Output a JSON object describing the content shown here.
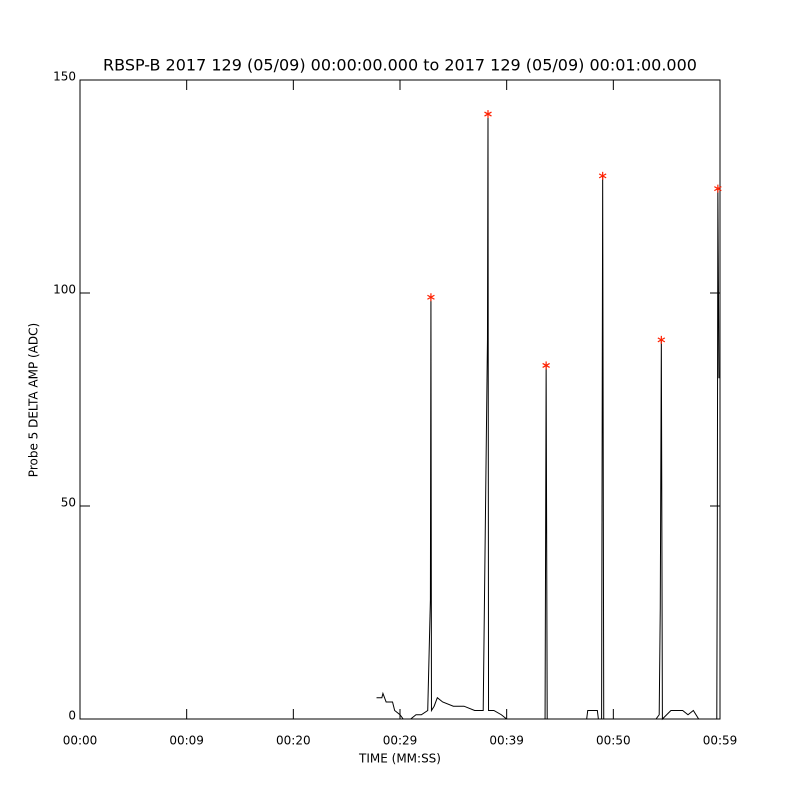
{
  "chart_data": {
    "type": "line",
    "title": "RBSP-B 2017 129 (05/09) 00:00:00.000 to 2017 129 (05/09) 00:01:00.000",
    "x_label": "TIME (MM:SS)",
    "y_label": "Probe 5 DELTA AMP (ADC)",
    "xlim": [
      0,
      60
    ],
    "xticks": [
      {
        "value": 0,
        "label": "00:00"
      },
      {
        "value": 10,
        "label": "00:09"
      },
      {
        "value": 20,
        "label": "00:20"
      },
      {
        "value": 30,
        "label": "00:29"
      },
      {
        "value": 40,
        "label": "00:39"
      },
      {
        "value": 50,
        "label": "00:50"
      },
      {
        "value": 60,
        "label": "00:59"
      }
    ],
    "ylim": [
      0,
      150
    ],
    "yticks": [
      0,
      50,
      100,
      150
    ],
    "series": [
      {
        "color": "#000000",
        "x": [
          27.8,
          28.3,
          28.4,
          28.7,
          29.3,
          29.5,
          30.0,
          30.3,
          31.0,
          31.5,
          32.0,
          32.6,
          32.85,
          32.9,
          32.95,
          33.2,
          33.5,
          34.0,
          35.0,
          36.0,
          37.0,
          37.8,
          38.2,
          38.25,
          38.3,
          38.8,
          39.5,
          40.0,
          43.6,
          43.7,
          43.8,
          47.5,
          47.6,
          48.5,
          48.6,
          48.9,
          49.0,
          49.1,
          54.0,
          54.3,
          54.4,
          54.5,
          54.6,
          55.0,
          55.4,
          56.5,
          57.0,
          57.5,
          58.0,
          59.7,
          59.75,
          59.8,
          59.9
        ],
        "values": [
          5,
          5,
          6,
          4,
          4,
          2,
          1,
          0,
          0,
          1,
          1,
          2,
          28,
          99,
          2,
          3,
          5,
          4,
          3,
          3,
          2,
          2,
          89,
          142,
          2,
          2,
          1,
          0,
          0,
          83,
          0,
          0,
          2,
          2,
          0,
          0,
          127.5,
          0,
          0,
          1,
          26,
          89,
          0,
          1,
          2,
          2,
          1,
          2,
          0,
          0,
          47,
          124.5,
          80
        ]
      },
      {
        "color": "#ff2000",
        "marker": "asterisk",
        "x": [
          32.9,
          38.25,
          43.7,
          49.0,
          54.5,
          59.8
        ],
        "values": [
          99,
          142,
          83,
          127.5,
          89,
          124.5
        ]
      }
    ]
  }
}
